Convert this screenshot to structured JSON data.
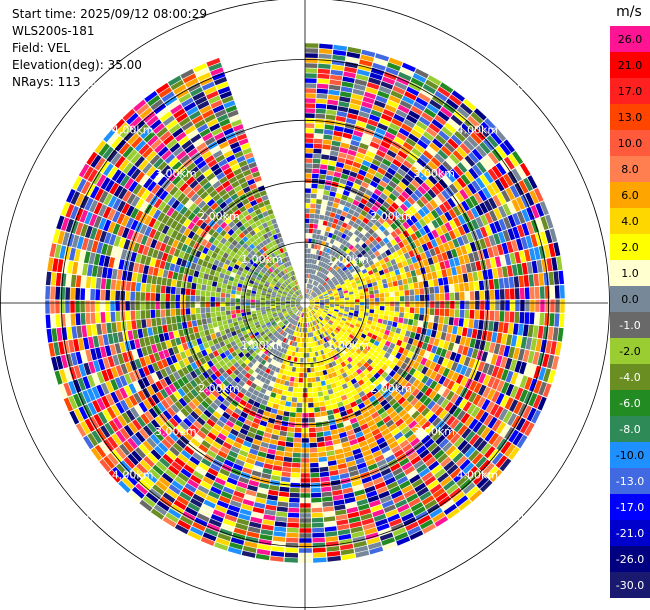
{
  "header": {
    "start_time": "Start time: 2025/09/12 08:00:29",
    "site": "WLS200s-181",
    "field": "Field: VEL",
    "elevation": "Elevation(deg): 35.00",
    "nrays": "NRays: 113"
  },
  "chart_data": {
    "type": "heatmap",
    "projection": "polar-ppi",
    "field": "VEL",
    "units": "m/s",
    "range_rings": [
      {
        "range_km": 1,
        "label": "1.00km"
      },
      {
        "range_km": 2,
        "label": "2.00km"
      },
      {
        "range_km": 3,
        "label": "3.00km"
      },
      {
        "range_km": 4,
        "label": "4.00km"
      },
      {
        "range_km": 5,
        "label": "5.00km"
      }
    ],
    "max_range_km": 6.2,
    "nrays": 113,
    "missing_sector_deg": [
      338,
      360
    ],
    "colorbar": {
      "unit_label": "m/s",
      "levels": [
        {
          "label": "26.0",
          "color": "#ff1493"
        },
        {
          "label": "21.0",
          "color": "#ff0000"
        },
        {
          "label": "17.0",
          "color": "#ff2020"
        },
        {
          "label": "13.0",
          "color": "#ff4500"
        },
        {
          "label": "10.0",
          "color": "#ff5a3c"
        },
        {
          "label": "8.0",
          "color": "#ff7f50"
        },
        {
          "label": "6.0",
          "color": "#ffa500"
        },
        {
          "label": "4.0",
          "color": "#ffd700"
        },
        {
          "label": "2.0",
          "color": "#ffff00"
        },
        {
          "label": "1.0",
          "color": "#ffffd0"
        },
        {
          "label": "0.0",
          "color": "#778899"
        },
        {
          "label": "-1.0",
          "color": "#696969"
        },
        {
          "label": "-2.0",
          "color": "#9acd32"
        },
        {
          "label": "-4.0",
          "color": "#6b8e23"
        },
        {
          "label": "-6.0",
          "color": "#228b22"
        },
        {
          "label": "-8.0",
          "color": "#2e8b57"
        },
        {
          "label": "-10.0",
          "color": "#1e90ff"
        },
        {
          "label": "-13.0",
          "color": "#4169e1"
        },
        {
          "label": "-17.0",
          "color": "#0000ff"
        },
        {
          "label": "-21.0",
          "color": "#0000cd"
        },
        {
          "label": "-26.0",
          "color": "#000080"
        },
        {
          "label": "-30.0",
          "color": "#191970"
        }
      ]
    }
  }
}
